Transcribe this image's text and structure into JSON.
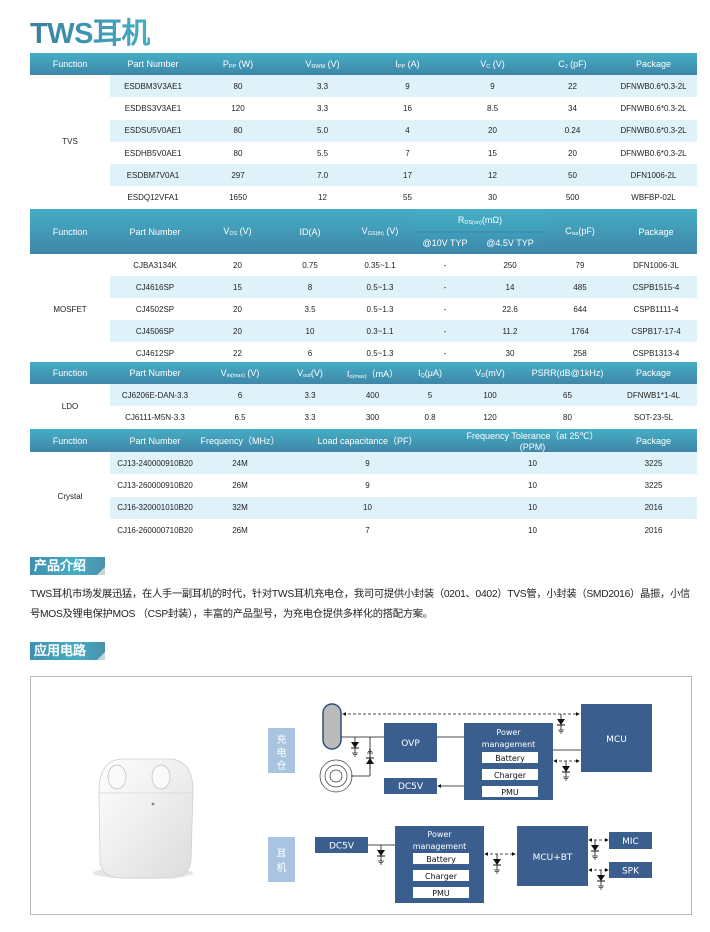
{
  "title": "TWS耳机",
  "colors": {
    "header_top": "#45aec4",
    "header_bottom": "#3f86a8",
    "stripe": "#dff2f9",
    "block": "#3a5f8f",
    "side_label": "#a9c4e0"
  },
  "tables": {
    "tvs": {
      "function": "TVS",
      "headers": [
        {
          "main": "Function"
        },
        {
          "main": "Part  Number"
        },
        {
          "main": "P",
          "sub": "PP",
          "tail": "  (W)"
        },
        {
          "main": "V",
          "sub": "RWM",
          "tail": "  (V)"
        },
        {
          "main": "I",
          "sub": "PP",
          "tail": " (A)"
        },
        {
          "main": "V",
          "sub": "C",
          "tail": "  (V)"
        },
        {
          "main": "C",
          "sub": "J",
          "tail": "  (pF)"
        },
        {
          "main": "Package"
        }
      ],
      "rows": [
        [
          "ESDBM3V3AE1",
          "80",
          "3.3",
          "9",
          "9",
          "22",
          "DFNWB0.6*0.3-2L"
        ],
        [
          "ESDBS3V3AE1",
          "120",
          "3.3",
          "16",
          "8.5",
          "34",
          "DFNWB0.6*0.3-2L"
        ],
        [
          "ESDSU5V0AE1",
          "80",
          "5.0",
          "4",
          "20",
          "0.24",
          "DFNWB0.6*0.3-2L"
        ],
        [
          "ESDHB5V0AE1",
          "80",
          "5.5",
          "7",
          "15",
          "20",
          "DFNWB0.6*0.3-2L"
        ],
        [
          "ESDBM7V0A1",
          "297",
          "7.0",
          "17",
          "12",
          "50",
          "DFN1006-2L"
        ],
        [
          "ESDQ12VFA1",
          "1650",
          "12",
          "55",
          "30",
          "500",
          "WBFBP-02L"
        ]
      ]
    },
    "mosfet": {
      "function": "MOSFET",
      "headers": [
        {
          "main": "Function"
        },
        {
          "main": "Part  Number"
        },
        {
          "main": "V",
          "sub": "DS",
          "tail": " (V)"
        },
        {
          "main": "ID(A)"
        },
        {
          "main": "V",
          "sub": "GS(th)",
          "tail": " (V)"
        },
        {
          "main": "R",
          "sub": "DS(on)",
          "tail": "(mΩ)",
          "children": [
            {
              "main": "@10V  TYP"
            },
            {
              "main": "@4.5V TYP"
            }
          ]
        },
        {
          "main": "C",
          "sub": "iss",
          "tail": "(pF)"
        },
        {
          "main": "Package"
        }
      ],
      "rows": [
        [
          "CJBA3134K",
          "20",
          "0.75",
          "0.35~1.1",
          "-",
          "250",
          "79",
          "DFN1006-3L"
        ],
        [
          "CJ4616SP",
          "15",
          "8",
          "0.5~1.3",
          "-",
          "14",
          "485",
          "CSPB1515-4"
        ],
        [
          "CJ4502SP",
          "20",
          "3.5",
          "0.5~1.3",
          "-",
          "22.6",
          "644",
          "CSPB1111-4"
        ],
        [
          "CJ4506SP",
          "20",
          "10",
          "0.3~1.1",
          "-",
          "11.2",
          "1764",
          "CSPB17-17-4"
        ],
        [
          "CJ4612SP",
          "22",
          "6",
          "0.5~1.3",
          "-",
          "30",
          "258",
          "CSPB1313-4"
        ]
      ]
    },
    "ldo": {
      "function": "LDO",
      "headers": [
        {
          "main": "Function"
        },
        {
          "main": "Part Number"
        },
        {
          "main": "V",
          "sub": "in(max)",
          "tail": " (V)"
        },
        {
          "main": "V",
          "sub": "out",
          "tail": "(V)"
        },
        {
          "main": "I",
          "sub": "o(max)",
          "tail": "（mA）"
        },
        {
          "main": "I",
          "sub": "Q",
          "tail": "(μA)"
        },
        {
          "main": "V",
          "sub": "D",
          "tail": "(mV)"
        },
        {
          "main": "PSRR(dB@1kHz)"
        },
        {
          "main": "Package"
        }
      ],
      "rows": [
        [
          "CJ6206E-DAN-3.3",
          "6",
          "3.3",
          "400",
          "5",
          "100",
          "65",
          "DFNWB1*1-4L"
        ],
        [
          "CJ6111-M5N-3.3",
          "6.5",
          "3.3",
          "300",
          "0.8",
          "120",
          "80",
          "SOT-23-5L"
        ]
      ]
    },
    "crystal": {
      "function": "Crystal",
      "headers": [
        {
          "main": "Function"
        },
        {
          "main": "Part  Number"
        },
        {
          "main": "Frequency（MHz）"
        },
        {
          "main": "Load capacitance（PF）"
        },
        {
          "main": "Frequency Tolerance（at 25℃）(PPM)"
        },
        {
          "main": "Package"
        }
      ],
      "rows": [
        [
          "CJ13-240000910B20",
          "24M",
          "9",
          "10",
          "3225"
        ],
        [
          "CJ13-260000910B20",
          "26M",
          "9",
          "10",
          "3225"
        ],
        [
          "CJ16-320001010B20",
          "32M",
          "10",
          "10",
          "2016"
        ],
        [
          "CJ16-260000710B20",
          "26M",
          "7",
          "10",
          "2016"
        ]
      ]
    }
  },
  "intro": {
    "heading": "产品介绍",
    "text": "TWS耳机市场发展迅猛，在人手一副耳机的时代，针对TWS耳机充电仓，我司可提供小封装（0201、0402）TVS管，小封装（SMD2016）晶振，小信号MOS及锂电保护MOS （CSP封装），丰富的产品型号，为充电仓提供多样化的搭配方案。"
  },
  "application": {
    "heading": "应用电路",
    "case": {
      "label": [
        "充",
        "电",
        "仓"
      ],
      "ovp": "OVP",
      "power_management": [
        "Power",
        "management"
      ],
      "battery": "Battery",
      "charger": "Charger",
      "pmu": "PMU",
      "mcu": "MCU",
      "dc5v": "DC5V"
    },
    "earphone": {
      "label": [
        "耳",
        "机"
      ],
      "dc5v": "DC5V",
      "power_management": [
        "Power",
        "management"
      ],
      "battery": "Battery",
      "charger": "Charger",
      "pmu": "PMU",
      "mcu_bt": "MCU+BT",
      "mic": "MIC",
      "spk": "SPK"
    }
  }
}
